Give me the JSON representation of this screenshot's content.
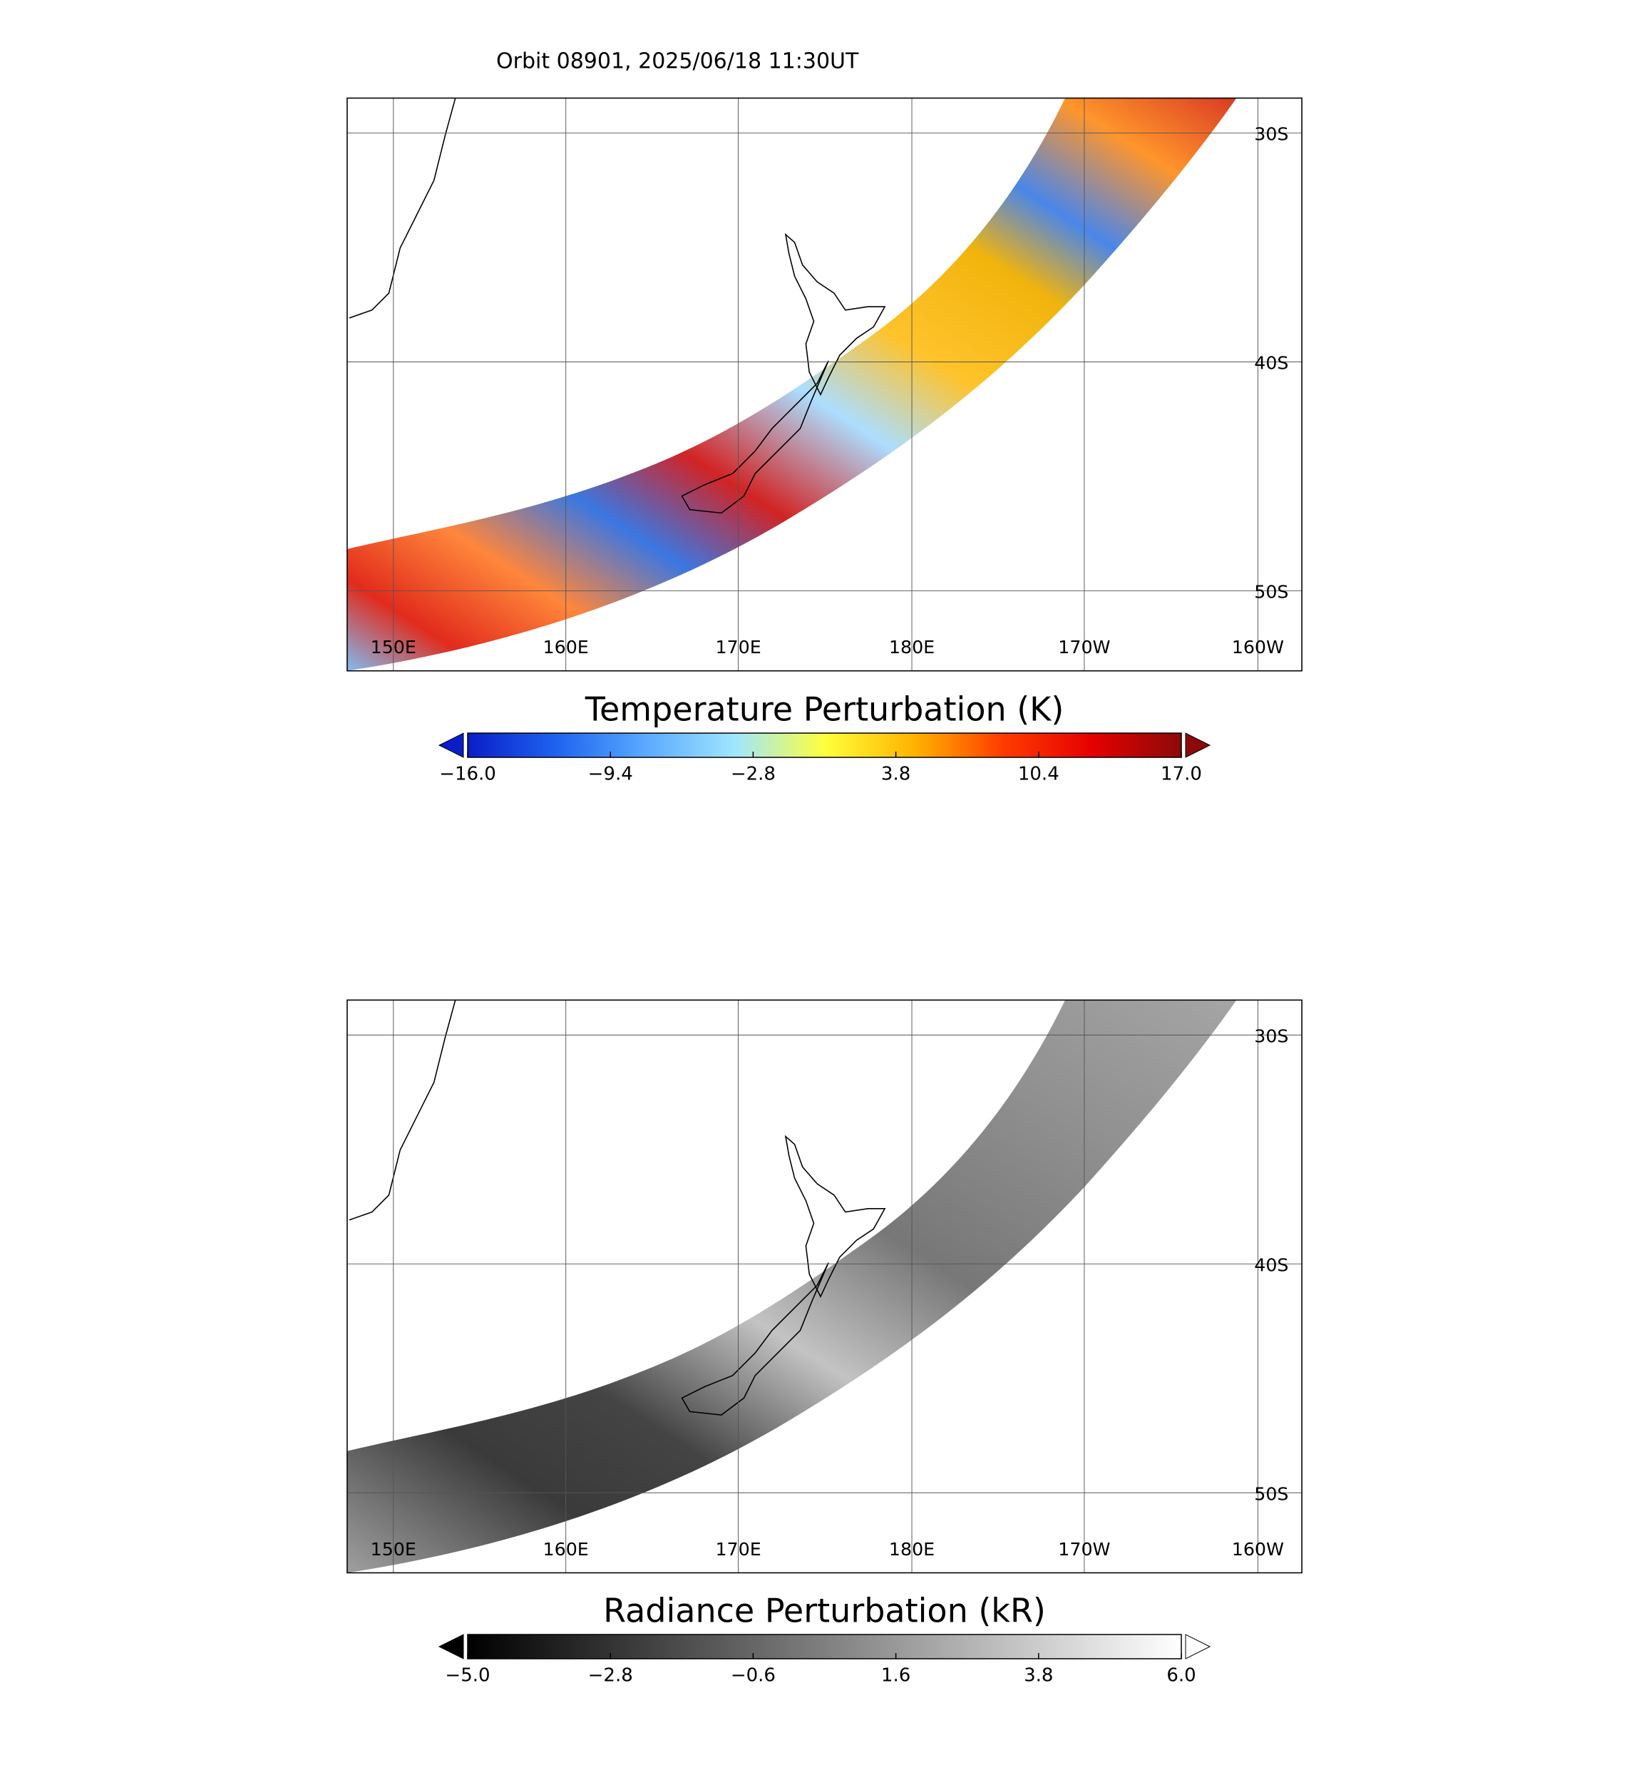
{
  "title": "Orbit 08901, 2025/06/18 11:30UT",
  "panels": [
    {
      "lon_labels": [
        "150E",
        "160E",
        "170E",
        "180E",
        "170W",
        "160W"
      ],
      "lat_labels": [
        "30S",
        "40S",
        "50S"
      ],
      "colorbar": {
        "title": "Temperature Perturbation (K)",
        "lim": [
          -16,
          17
        ],
        "ticks": [
          {
            "value": -16,
            "label": "−16.0"
          },
          {
            "value": -9.4,
            "label": "−9.4"
          },
          {
            "value": -2.8,
            "label": "−2.8"
          },
          3.8,
          10.4,
          {
            "value": 17,
            "label": "17.0"
          }
        ],
        "colors": [
          "#0a1ec8",
          "#1e64f0",
          "#5aaaff",
          "#a0e6ff",
          "#ffff3c",
          "#ffb400",
          "#ff3c00",
          "#e60000",
          "#8c0a0a"
        ]
      }
    },
    {
      "lon_labels": [
        "150E",
        "160E",
        "170E",
        "180E",
        "170W",
        "160W"
      ],
      "lat_labels": [
        "30S",
        "40S",
        "50S"
      ],
      "colorbar": {
        "title": "Radiance Perturbation (kR)",
        "lim": [
          -5,
          6
        ],
        "ticks": [
          {
            "value": -5,
            "label": "−5.0"
          },
          {
            "value": -2.8,
            "label": "−2.8"
          },
          {
            "value": -0.6,
            "label": "−0.6"
          },
          1.6,
          3.8,
          {
            "value": 6,
            "label": "6.0"
          }
        ],
        "colors": [
          "#000000",
          "#ffffff"
        ]
      }
    }
  ]
}
